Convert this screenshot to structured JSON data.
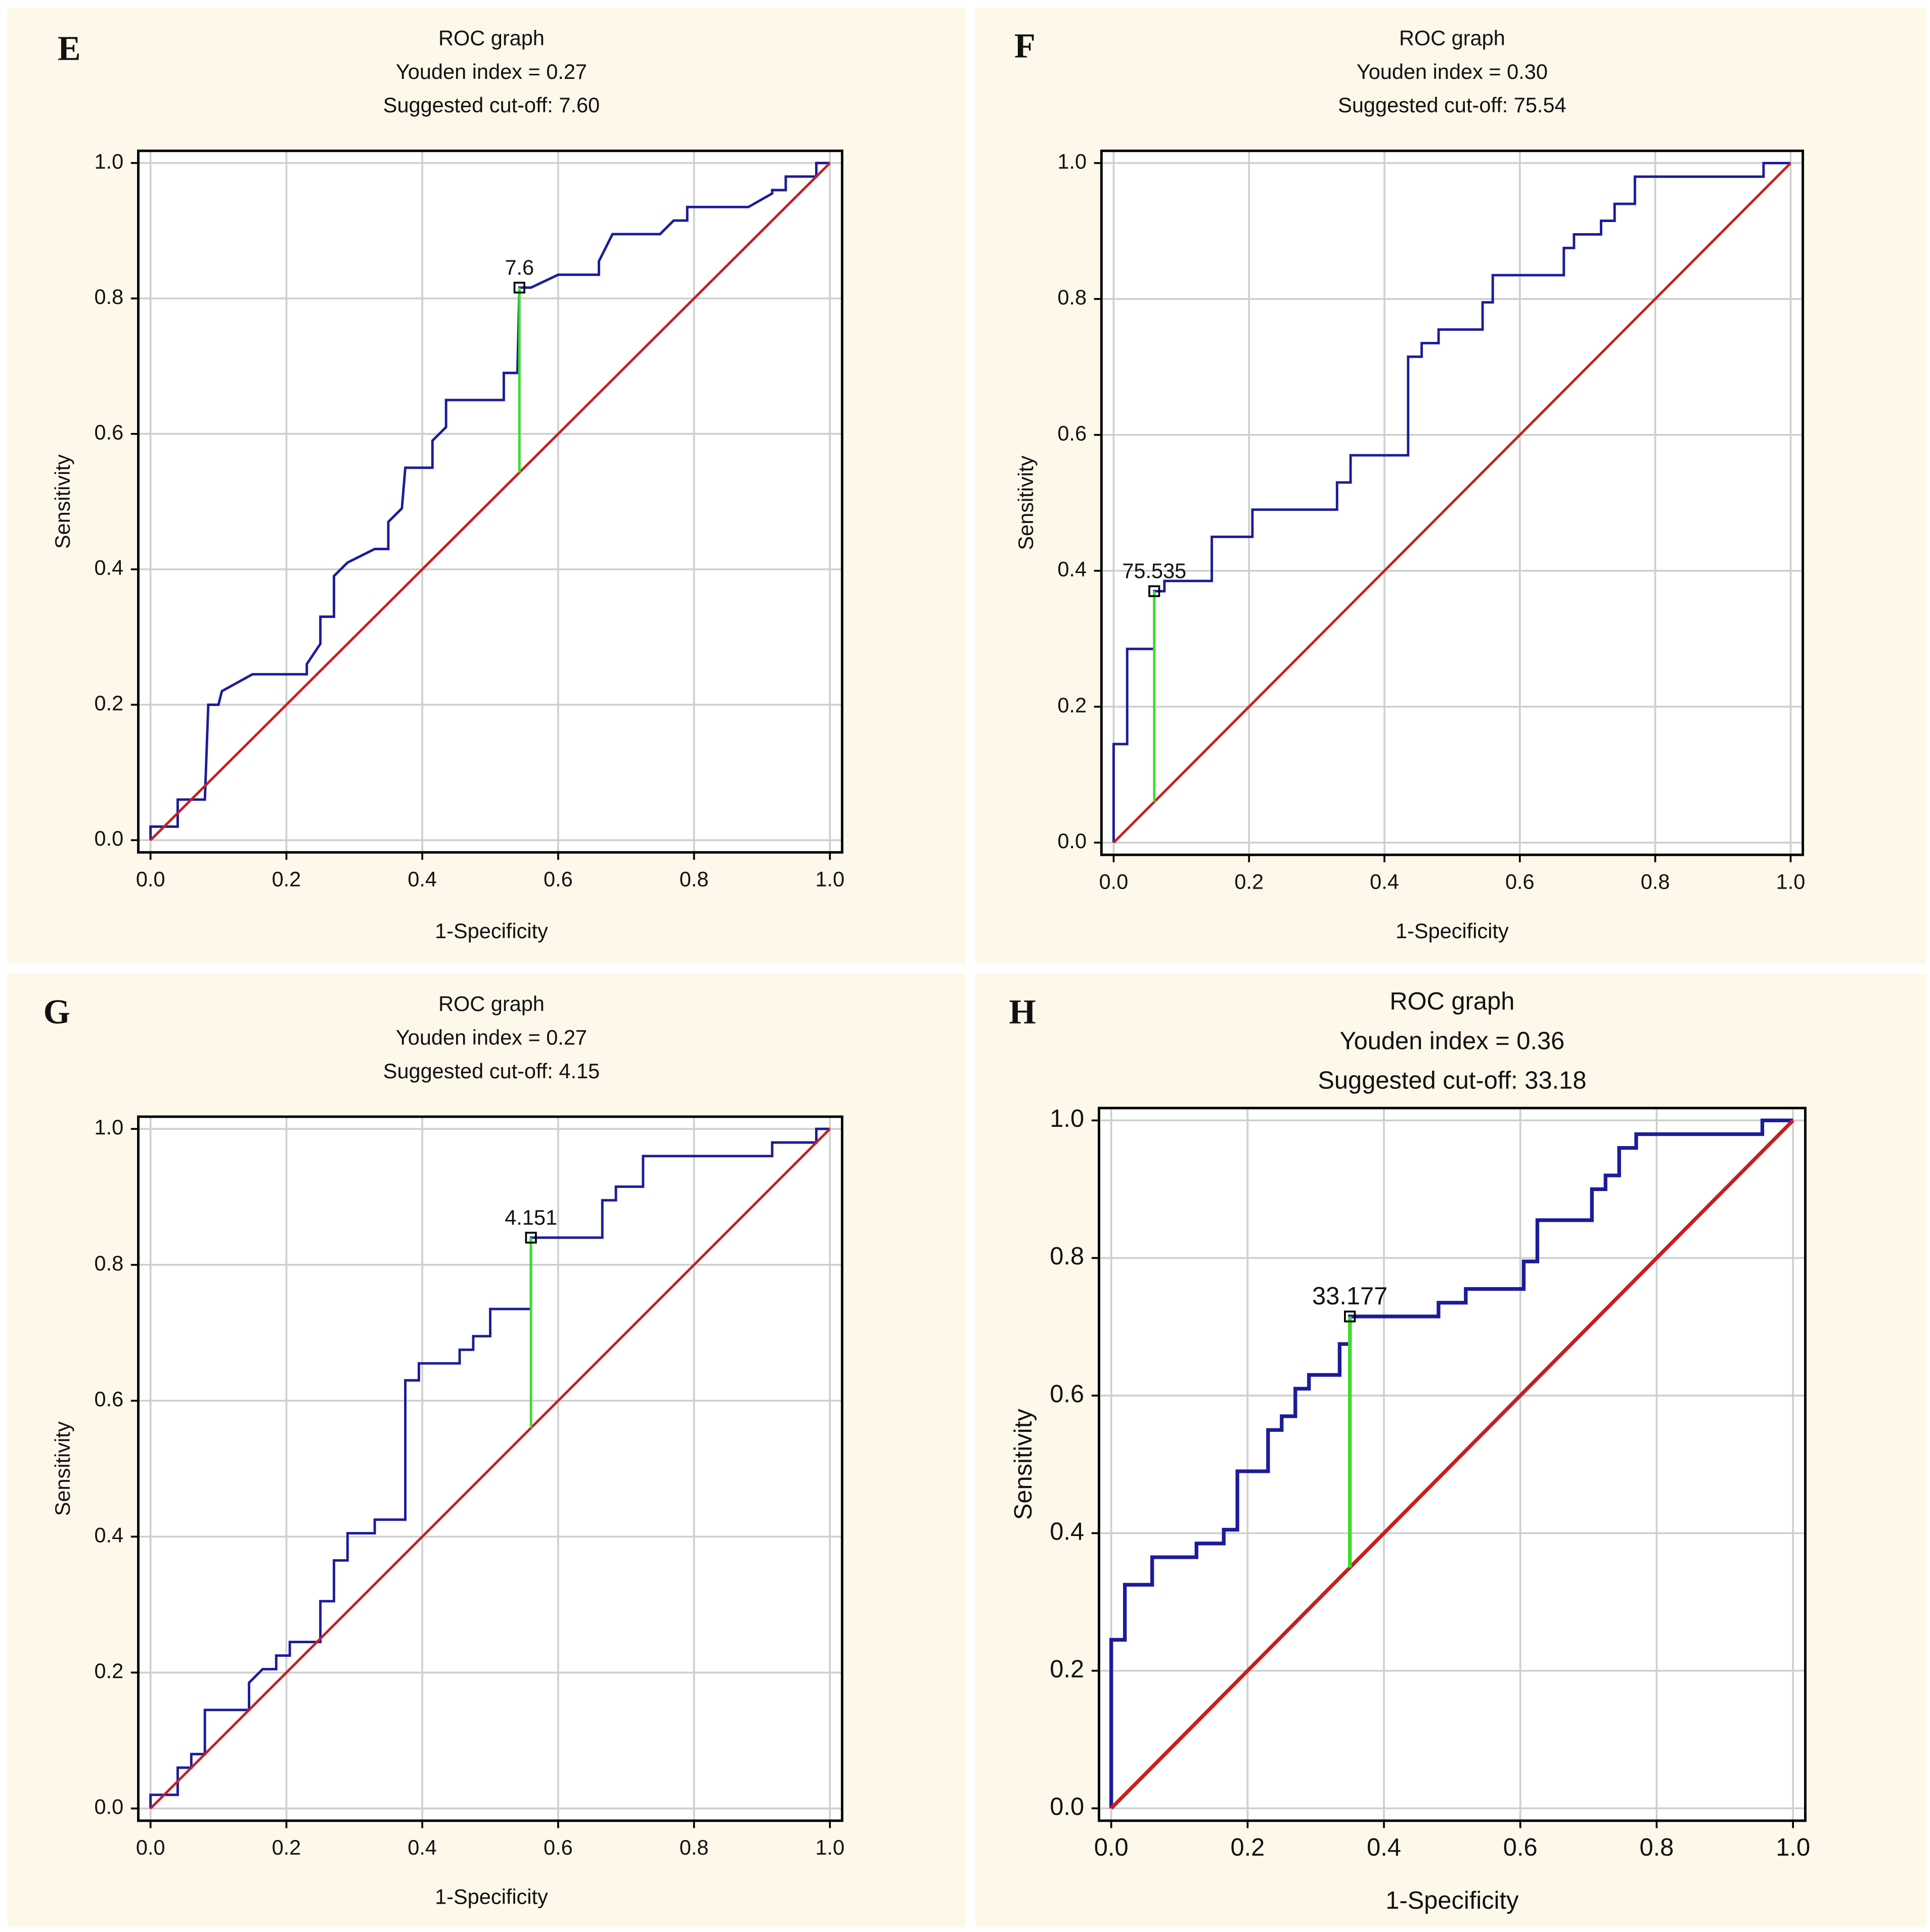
{
  "chart_data": [
    {
      "type": "line",
      "panel": "E",
      "title": "ROC graph",
      "subtitle": [
        "Youden index = 0.27",
        "Suggested cut-off: 7.60"
      ],
      "xlabel": "1-Specificity",
      "ylabel": "Sensitivity",
      "xlim": [
        -0.018,
        1.018
      ],
      "ylim": [
        -0.018,
        1.018
      ],
      "xticks": [
        {
          "value": 0,
          "label": "0.0"
        },
        0.2,
        0.4,
        0.6,
        0.8,
        {
          "value": 1,
          "label": "1.0"
        }
      ],
      "yticks": [
        {
          "value": 0,
          "label": "0.0"
        },
        0.2,
        0.4,
        0.6,
        0.8,
        {
          "value": 1,
          "label": "1.0"
        }
      ],
      "grid": true,
      "series": [
        {
          "color": "#1c1c9a",
          "x": [
            0,
            0,
            0.04,
            0.04,
            0.08,
            0.085,
            0.1,
            0.105,
            0.15,
            0.23,
            0.23,
            0.25,
            0.25,
            0.27,
            0.27,
            0.29,
            0.33,
            0.35,
            0.35,
            0.37,
            0.375,
            0.415,
            0.415,
            0.435,
            0.435,
            0.52,
            0.52,
            0.54,
            0.543,
            0.56,
            0.6,
            0.66,
            0.66,
            0.68,
            0.75,
            0.77,
            0.79,
            0.79,
            0.88,
            0.915,
            0.915,
            0.935,
            0.935,
            0.98,
            0.98,
            1
          ],
          "y": [
            0,
            0.02,
            0.02,
            0.06,
            0.06,
            0.2,
            0.2,
            0.22,
            0.245,
            0.245,
            0.26,
            0.29,
            0.33,
            0.33,
            0.39,
            0.41,
            0.43,
            0.43,
            0.47,
            0.49,
            0.55,
            0.55,
            0.59,
            0.61,
            0.65,
            0.65,
            0.69,
            0.69,
            0.816,
            0.816,
            0.835,
            0.835,
            0.855,
            0.895,
            0.895,
            0.915,
            0.915,
            0.935,
            0.935,
            0.955,
            0.96,
            0.96,
            0.98,
            0.98,
            1,
            1
          ]
        },
        {
          "color": "#c81e1e",
          "x": [
            0,
            1
          ],
          "y": [
            0,
            1
          ]
        }
      ],
      "cutoff": {
        "x": 0.543,
        "y": 0.816,
        "label": "7.6",
        "color": "#3ddc2e"
      }
    },
    {
      "type": "line",
      "panel": "F",
      "title": "ROC graph",
      "subtitle": [
        "Youden index = 0.30",
        "Suggested cut-off: 75.54"
      ],
      "xlabel": "1-Specificity",
      "ylabel": "Sensitivity",
      "xlim": [
        -0.018,
        1.018
      ],
      "ylim": [
        -0.018,
        1.018
      ],
      "xticks": [
        {
          "value": 0,
          "label": "0.0"
        },
        0.2,
        0.4,
        0.6,
        0.8,
        {
          "value": 1,
          "label": "1.0"
        }
      ],
      "yticks": [
        {
          "value": 0,
          "label": "0.0"
        },
        0.2,
        0.4,
        0.6,
        0.8,
        {
          "value": 1,
          "label": "1.0"
        }
      ],
      "grid": true,
      "series": [
        {
          "color": "#1c1c9a",
          "x": [
            0,
            0,
            0.02,
            0.02,
            0.06,
            0.06,
            0.075,
            0.075,
            0.145,
            0.145,
            0.205,
            0.205,
            0.33,
            0.33,
            0.35,
            0.35,
            0.435,
            0.435,
            0.455,
            0.455,
            0.48,
            0.48,
            0.545,
            0.545,
            0.56,
            0.56,
            0.665,
            0.665,
            0.68,
            0.68,
            0.72,
            0.72,
            0.74,
            0.74,
            0.77,
            0.77,
            0.96,
            0.96,
            1
          ],
          "y": [
            0,
            0.145,
            0.145,
            0.285,
            0.285,
            0.37,
            0.37,
            0.385,
            0.385,
            0.45,
            0.45,
            0.49,
            0.49,
            0.53,
            0.53,
            0.57,
            0.57,
            0.715,
            0.715,
            0.735,
            0.735,
            0.755,
            0.755,
            0.795,
            0.795,
            0.835,
            0.835,
            0.875,
            0.875,
            0.895,
            0.895,
            0.915,
            0.915,
            0.94,
            0.94,
            0.98,
            0.98,
            1,
            1
          ]
        },
        {
          "color": "#c81e1e",
          "x": [
            0,
            1
          ],
          "y": [
            0,
            1
          ]
        }
      ],
      "cutoff": {
        "x": 0.06,
        "y": 0.37,
        "label": "75.535",
        "color": "#3ddc2e"
      }
    },
    {
      "type": "line",
      "panel": "G",
      "title": "ROC graph",
      "subtitle": [
        "Youden index = 0.27",
        "Suggested cut-off: 4.15"
      ],
      "xlabel": "1-Specificity",
      "ylabel": "Sensitivity",
      "xlim": [
        -0.018,
        1.018
      ],
      "ylim": [
        -0.018,
        1.018
      ],
      "xticks": [
        {
          "value": 0,
          "label": "0.0"
        },
        0.2,
        0.4,
        0.6,
        0.8,
        {
          "value": 1,
          "label": "1.0"
        }
      ],
      "yticks": [
        {
          "value": 0,
          "label": "0.0"
        },
        0.2,
        0.4,
        0.6,
        0.8,
        {
          "value": 1,
          "label": "1.0"
        }
      ],
      "grid": true,
      "series": [
        {
          "color": "#1c1c9a",
          "x": [
            0,
            0,
            0.04,
            0.04,
            0.06,
            0.06,
            0.08,
            0.08,
            0.145,
            0.145,
            0.165,
            0.185,
            0.185,
            0.205,
            0.205,
            0.25,
            0.25,
            0.27,
            0.27,
            0.29,
            0.29,
            0.33,
            0.33,
            0.375,
            0.375,
            0.395,
            0.395,
            0.455,
            0.455,
            0.475,
            0.475,
            0.5,
            0.5,
            0.56,
            0.56,
            0.665,
            0.665,
            0.685,
            0.685,
            0.725,
            0.725,
            0.915,
            0.915,
            0.98,
            0.98,
            1
          ],
          "y": [
            0,
            0.02,
            0.02,
            0.06,
            0.06,
            0.08,
            0.08,
            0.145,
            0.145,
            0.185,
            0.205,
            0.205,
            0.225,
            0.225,
            0.245,
            0.245,
            0.305,
            0.305,
            0.365,
            0.365,
            0.405,
            0.405,
            0.425,
            0.425,
            0.63,
            0.63,
            0.655,
            0.655,
            0.675,
            0.675,
            0.695,
            0.695,
            0.735,
            0.735,
            0.84,
            0.84,
            0.895,
            0.895,
            0.915,
            0.915,
            0.96,
            0.96,
            0.98,
            0.98,
            1,
            1
          ]
        },
        {
          "color": "#c81e1e",
          "x": [
            0,
            1
          ],
          "y": [
            0,
            1
          ]
        }
      ],
      "cutoff": {
        "x": 0.56,
        "y": 0.84,
        "label": "4.151",
        "color": "#3ddc2e"
      }
    },
    {
      "type": "line",
      "panel": "H",
      "title": "ROC graph",
      "subtitle": [
        "Youden index = 0.36",
        "Suggested cut-off: 33.18"
      ],
      "xlabel": "1-Specificity",
      "ylabel": "Sensitivity",
      "xlim": [
        -0.018,
        1.018
      ],
      "ylim": [
        -0.018,
        1.018
      ],
      "xticks": [
        {
          "value": 0,
          "label": "0.0"
        },
        0.2,
        0.4,
        0.6,
        0.8,
        {
          "value": 1,
          "label": "1.0"
        }
      ],
      "yticks": [
        {
          "value": 0,
          "label": "0.0"
        },
        0.2,
        0.4,
        0.6,
        0.8,
        {
          "value": 1,
          "label": "1.0"
        }
      ],
      "grid": true,
      "series": [
        {
          "color": "#1c1c9a",
          "x": [
            0,
            0,
            0.02,
            0.02,
            0.06,
            0.06,
            0.125,
            0.125,
            0.165,
            0.165,
            0.185,
            0.185,
            0.23,
            0.23,
            0.25,
            0.25,
            0.27,
            0.27,
            0.29,
            0.29,
            0.335,
            0.335,
            0.35,
            0.35,
            0.48,
            0.48,
            0.52,
            0.52,
            0.605,
            0.605,
            0.625,
            0.625,
            0.705,
            0.705,
            0.725,
            0.725,
            0.745,
            0.745,
            0.77,
            0.77,
            0.955,
            0.955,
            1
          ],
          "y": [
            0,
            0.245,
            0.245,
            0.325,
            0.325,
            0.365,
            0.365,
            0.385,
            0.385,
            0.405,
            0.405,
            0.49,
            0.49,
            0.55,
            0.55,
            0.57,
            0.57,
            0.61,
            0.61,
            0.63,
            0.63,
            0.675,
            0.675,
            0.715,
            0.715,
            0.735,
            0.735,
            0.755,
            0.755,
            0.795,
            0.795,
            0.855,
            0.855,
            0.9,
            0.9,
            0.92,
            0.92,
            0.96,
            0.96,
            0.98,
            0.98,
            1,
            1
          ]
        },
        {
          "color": "#c81e1e",
          "x": [
            0,
            1
          ],
          "y": [
            0,
            1
          ]
        }
      ],
      "cutoff": {
        "x": 0.35,
        "y": 0.715,
        "label": "33.177",
        "color": "#3ddc2e"
      }
    }
  ]
}
